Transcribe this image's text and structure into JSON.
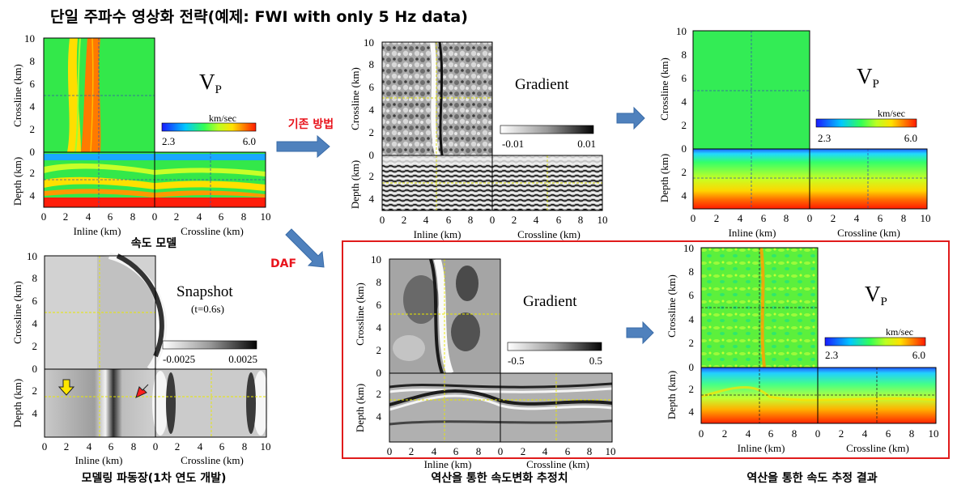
{
  "title": "단일 주파수 영상화 전략(예제: FWI with only 5 Hz data)",
  "labels": {
    "crossline_km": "Crossline (km)",
    "depth_km": "Depth (km)",
    "inline_km": "Inline (km)"
  },
  "ticks": {
    "x": [
      "0",
      "2",
      "4",
      "6",
      "8",
      "10"
    ],
    "xc": [
      "0",
      "2",
      "4",
      "6",
      "8",
      "10"
    ],
    "crossline": [
      "0",
      "2",
      "4",
      "6",
      "8",
      "10"
    ],
    "depth": [
      "2",
      "4"
    ]
  },
  "panels": {
    "velocity_model": {
      "name_main": "V",
      "name_sub": "P",
      "colorbar_unit": "km/sec",
      "colorbar_min": "2.3",
      "colorbar_max": "6.0",
      "caption": "속도 모델"
    },
    "gradient_conventional": {
      "name": "Gradient",
      "colorbar_min": "-0.01",
      "colorbar_max": "0.01"
    },
    "result_conventional": {
      "name_main": "V",
      "name_sub": "P",
      "colorbar_unit": "km/sec",
      "colorbar_min": "2.3",
      "colorbar_max": "6.0"
    },
    "snapshot": {
      "name": "Snapshot",
      "time": "(t=0.6s)",
      "colorbar_min": "-0.0025",
      "colorbar_max": "0.0025",
      "caption": "모델링 파동장(1차 연도 개발)"
    },
    "gradient_daf": {
      "name": "Gradient",
      "colorbar_min": "-0.5",
      "colorbar_max": "0.5",
      "caption": "역산을 통한 속도변화 추정치"
    },
    "result_daf": {
      "name_main": "V",
      "name_sub": "P",
      "colorbar_unit": "km/sec",
      "colorbar_min": "2.3",
      "colorbar_max": "6.0",
      "caption": "역산을 통한 속도 추정 결과"
    }
  },
  "arrows": {
    "conventional_label": "기존 방법",
    "daf_label": "DAF"
  },
  "colors": {
    "accent_red": "#e8141c",
    "highlight_box": "#e01b1b",
    "arrow_fill": "#4f81bd",
    "green": "#22e33a",
    "orange": "#ff7a00"
  }
}
